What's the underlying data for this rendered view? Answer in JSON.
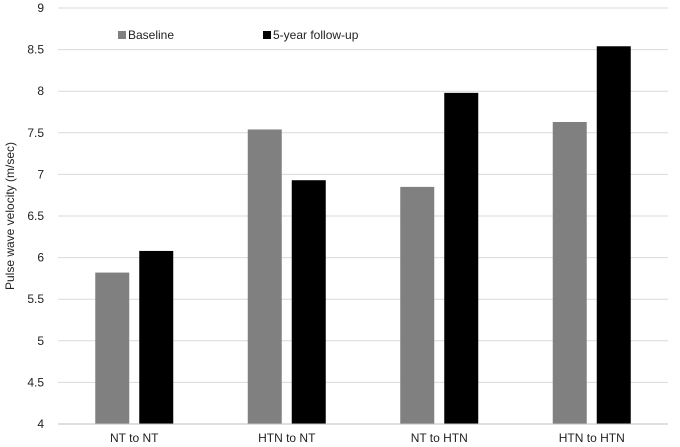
{
  "chart_data": {
    "type": "bar",
    "categories": [
      "NT to NT",
      "HTN to NT",
      "NT to HTN",
      "HTN to HTN"
    ],
    "series": [
      {
        "name": "Baseline",
        "color": "#808080",
        "values": [
          5.82,
          7.54,
          6.85,
          7.63
        ]
      },
      {
        "name": "5-year follow-up",
        "color": "#000000",
        "values": [
          6.08,
          6.93,
          7.98,
          8.54
        ]
      }
    ],
    "ylabel": "Pulse wave velocity (m/sec)",
    "xlabel": "",
    "ylim": [
      4,
      9
    ],
    "yticks": [
      "4",
      "4.5",
      "5",
      "5.5",
      "6",
      "6.5",
      "7",
      "7.5",
      "8",
      "8.5",
      "9"
    ],
    "grid": true,
    "legend_position": "top-left"
  }
}
